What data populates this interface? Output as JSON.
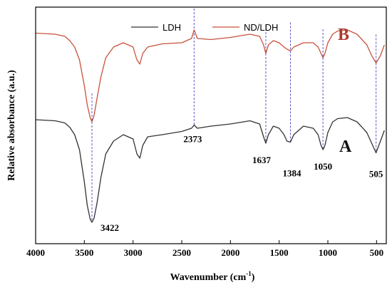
{
  "chart_data": {
    "type": "line",
    "xlabel": "Wavenumber (cm",
    "xlabel_sup": "-1",
    "xlabel_close": ")",
    "ylabel": "Relative absorbance (a.u.)",
    "xlim": [
      4000,
      400
    ],
    "x_reversed": true,
    "xticks": [
      4000,
      3500,
      3000,
      2500,
      2000,
      1500,
      1000,
      500
    ],
    "yticks": [],
    "grid": false,
    "legend": {
      "placement": "top"
    },
    "series": [
      {
        "name": "LDH",
        "label": "A",
        "color": "#333333",
        "label_color": "#111111",
        "x": [
          4000,
          3800,
          3700,
          3650,
          3600,
          3550,
          3500,
          3470,
          3440,
          3422,
          3400,
          3370,
          3330,
          3280,
          3200,
          3100,
          3000,
          2960,
          2930,
          2900,
          2850,
          2700,
          2500,
          2400,
          2373,
          2340,
          2200,
          2000,
          1800,
          1700,
          1660,
          1637,
          1610,
          1560,
          1500,
          1450,
          1420,
          1384,
          1350,
          1250,
          1150,
          1100,
          1070,
          1050,
          1030,
          1000,
          950,
          900,
          800,
          700,
          600,
          550,
          505,
          460,
          420
        ],
        "y": [
          0.54,
          0.535,
          0.525,
          0.505,
          0.47,
          0.4,
          0.25,
          0.14,
          0.075,
          0.06,
          0.08,
          0.15,
          0.27,
          0.38,
          0.44,
          0.47,
          0.45,
          0.38,
          0.36,
          0.42,
          0.46,
          0.47,
          0.485,
          0.5,
          0.515,
          0.5,
          0.51,
          0.52,
          0.535,
          0.52,
          0.46,
          0.43,
          0.47,
          0.51,
          0.5,
          0.47,
          0.44,
          0.435,
          0.47,
          0.51,
          0.5,
          0.47,
          0.42,
          0.4,
          0.42,
          0.48,
          0.53,
          0.545,
          0.55,
          0.53,
          0.48,
          0.43,
          0.385,
          0.44,
          0.49
        ]
      },
      {
        "name": "ND/LDH",
        "label": "B",
        "color": "#c8523e",
        "label_color": "#a93a2e",
        "x": [
          4000,
          3800,
          3700,
          3650,
          3600,
          3550,
          3500,
          3470,
          3440,
          3422,
          3400,
          3370,
          3330,
          3280,
          3200,
          3100,
          3000,
          2960,
          2930,
          2900,
          2850,
          2700,
          2500,
          2400,
          2373,
          2340,
          2200,
          2000,
          1800,
          1700,
          1660,
          1637,
          1610,
          1560,
          1500,
          1450,
          1420,
          1384,
          1350,
          1250,
          1150,
          1100,
          1070,
          1050,
          1030,
          1000,
          950,
          900,
          800,
          700,
          600,
          550,
          505,
          460,
          420
        ],
        "y": [
          0.945,
          0.94,
          0.93,
          0.91,
          0.88,
          0.82,
          0.7,
          0.61,
          0.55,
          0.53,
          0.56,
          0.64,
          0.74,
          0.83,
          0.88,
          0.9,
          0.88,
          0.82,
          0.8,
          0.85,
          0.88,
          0.895,
          0.9,
          0.92,
          0.96,
          0.92,
          0.915,
          0.925,
          0.94,
          0.93,
          0.89,
          0.85,
          0.89,
          0.91,
          0.9,
          0.88,
          0.87,
          0.862,
          0.88,
          0.9,
          0.9,
          0.88,
          0.85,
          0.83,
          0.85,
          0.9,
          0.94,
          0.955,
          0.96,
          0.94,
          0.89,
          0.84,
          0.805,
          0.84,
          0.89
        ]
      }
    ],
    "annotations": [
      {
        "x": 3422,
        "text": "3422"
      },
      {
        "x": 2373,
        "text": "2373"
      },
      {
        "x": 1637,
        "text": "1637"
      },
      {
        "x": 1384,
        "text": "1384"
      },
      {
        "x": 1050,
        "text": "1050"
      },
      {
        "x": 505,
        "text": "505"
      }
    ],
    "guide_color": "#5a57c9"
  }
}
